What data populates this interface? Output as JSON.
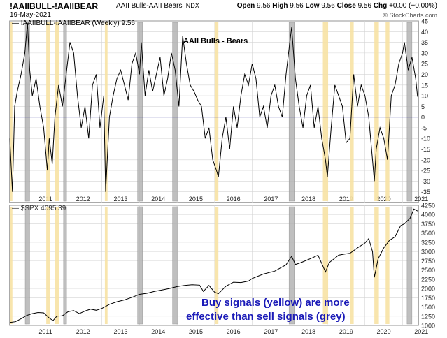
{
  "header": {
    "ticker": "!AAIIBULL-!AAIIBEAR",
    "description": "AAII Bulls-AAII Bears",
    "exchange": "INDX",
    "date": "19-May-2021",
    "open_label": "Open",
    "open": "9.56",
    "high_label": "High",
    "high": "9.56",
    "low_label": "Low",
    "low": "9.56",
    "close_label": "Close",
    "close": "9.56",
    "chg_label": "Chg",
    "chg": "+0.00 (+0.00%)",
    "watermark": "© StockCharts.com"
  },
  "top_panel": {
    "legend": "— !AAIIBULL-!AAIIBEAR (Weekly) 9.56",
    "title": "AAII Bulls - Bears"
  },
  "bottom_panel": {
    "legend": "— $SPX 4095.39"
  },
  "annotation": {
    "line1": "Buy signals (yellow) are more",
    "line2": "effective than sell signals (grey)"
  },
  "colors": {
    "line": "#000000",
    "zero_line": "#1a1a8c",
    "grid": "#d4d4d4",
    "buy_signal": "#f7e2a4",
    "sell_signal": "#b4b4b4",
    "annotation_text": "#1b1bb8"
  },
  "chart_data": [
    {
      "type": "line",
      "title": "AAII Bulls - Bears",
      "x_axis": {
        "start": 2010.55,
        "end": 2021.42,
        "tick_labels": [
          "2011",
          "2012",
          "2013",
          "2014",
          "2015",
          "2016",
          "2017",
          "2018",
          "2019",
          "2020",
          "2021"
        ]
      },
      "y_axis": {
        "range": [
          -40,
          45
        ],
        "ticks": [
          -35,
          -30,
          -25,
          -20,
          -15,
          -10,
          -5,
          0,
          5,
          10,
          15,
          20,
          25,
          30,
          35,
          40,
          45
        ],
        "position": "right"
      },
      "zero_line": true,
      "grid": true,
      "series": [
        {
          "x": [
            2010.55,
            2010.62,
            2010.68,
            2010.75,
            2010.85,
            2010.95,
            2011.02,
            2011.08,
            2011.15,
            2011.25,
            2011.35,
            2011.45,
            2011.55,
            2011.6,
            2011.68,
            2011.75,
            2011.85,
            2011.95,
            2012.05,
            2012.15,
            2012.25,
            2012.35,
            2012.45,
            2012.55,
            2012.65,
            2012.75,
            2012.85,
            2012.95,
            2013.05,
            2013.1,
            2013.2,
            2013.3,
            2013.4,
            2013.5,
            2013.6,
            2013.7,
            2013.8,
            2013.9,
            2014.0,
            2014.05,
            2014.15,
            2014.25,
            2014.35,
            2014.45,
            2014.55,
            2014.65,
            2014.75,
            2014.85,
            2014.95,
            2015.05,
            2015.15,
            2015.25,
            2015.35,
            2015.45,
            2015.55,
            2015.65,
            2015.75,
            2015.85,
            2015.95,
            2016.05,
            2016.1,
            2016.2,
            2016.3,
            2016.4,
            2016.5,
            2016.6,
            2016.7,
            2016.8,
            2016.9,
            2017.0,
            2017.1,
            2017.2,
            2017.3,
            2017.4,
            2017.5,
            2017.6,
            2017.7,
            2017.8,
            2017.9,
            2018.0,
            2018.05,
            2018.15,
            2018.25,
            2018.35,
            2018.45,
            2018.55,
            2018.65,
            2018.75,
            2018.85,
            2018.95,
            2019.0,
            2019.1,
            2019.2,
            2019.3,
            2019.4,
            2019.5,
            2019.6,
            2019.7,
            2019.8,
            2019.9,
            2020.0,
            2020.1,
            2020.2,
            2020.25,
            2020.3,
            2020.4,
            2020.5,
            2020.6,
            2020.7,
            2020.8,
            2020.9,
            2021.0,
            2021.05,
            2021.15,
            2021.25,
            2021.35,
            2021.4
          ],
          "y": [
            -10,
            -35,
            5,
            12,
            20,
            30,
            44,
            22,
            10,
            18,
            5,
            -5,
            -25,
            -10,
            -22,
            0,
            15,
            5,
            20,
            35,
            30,
            10,
            -5,
            5,
            -10,
            15,
            20,
            -5,
            10,
            -35,
            0,
            10,
            18,
            22,
            15,
            8,
            25,
            30,
            20,
            35,
            10,
            22,
            12,
            20,
            28,
            10,
            18,
            30,
            22,
            5,
            38,
            25,
            15,
            12,
            8,
            5,
            -10,
            -5,
            -20,
            -25,
            -28,
            -10,
            0,
            -15,
            5,
            -5,
            10,
            20,
            15,
            25,
            18,
            0,
            5,
            -5,
            10,
            15,
            5,
            0,
            20,
            35,
            42,
            18,
            5,
            -5,
            10,
            15,
            -5,
            5,
            -10,
            -20,
            -28,
            -5,
            15,
            10,
            5,
            -12,
            -10,
            20,
            5,
            15,
            10,
            0,
            -20,
            -30,
            -15,
            -5,
            -10,
            -20,
            10,
            15,
            25,
            30,
            35,
            22,
            28,
            18,
            9.56
          ]
        }
      ],
      "buy_signals": [
        {
          "start": 2010.55,
          "end": 2010.62
        },
        {
          "start": 2011.52,
          "end": 2011.62
        },
        {
          "start": 2011.75,
          "end": 2011.86
        },
        {
          "start": 2013.08,
          "end": 2013.15
        },
        {
          "start": 2016.0,
          "end": 2016.1
        },
        {
          "start": 2018.88,
          "end": 2019.02
        },
        {
          "start": 2019.6,
          "end": 2019.7
        },
        {
          "start": 2020.25,
          "end": 2020.37
        },
        {
          "start": 2020.55,
          "end": 2020.65
        }
      ],
      "sell_signals": [
        {
          "start": 2010.96,
          "end": 2011.08
        },
        {
          "start": 2011.98,
          "end": 2012.06
        },
        {
          "start": 2013.95,
          "end": 2014.08
        },
        {
          "start": 2014.88,
          "end": 2015.02
        },
        {
          "start": 2017.98,
          "end": 2018.12
        },
        {
          "start": 2021.12,
          "end": 2021.25
        }
      ]
    },
    {
      "type": "line",
      "title": "$SPX",
      "legend": "$SPX 4095.39",
      "x_axis": {
        "start": 2010.55,
        "end": 2021.42,
        "tick_labels": [
          "2011",
          "2012",
          "2013",
          "2014",
          "2015",
          "2016",
          "2017",
          "2018",
          "2019",
          "2020",
          "2021"
        ]
      },
      "y_axis": {
        "range": [
          1000,
          4250
        ],
        "ticks": [
          1000,
          1250,
          1500,
          1750,
          2000,
          2250,
          2500,
          2750,
          3000,
          3250,
          3500,
          3750,
          4000,
          4250
        ],
        "position": "right"
      },
      "grid": true,
      "series": [
        {
          "x": [
            2010.55,
            2010.7,
            2010.85,
            2011.0,
            2011.15,
            2011.3,
            2011.45,
            2011.6,
            2011.7,
            2011.8,
            2011.95,
            2012.1,
            2012.25,
            2012.4,
            2012.55,
            2012.7,
            2012.85,
            2013.0,
            2013.2,
            2013.4,
            2013.6,
            2013.8,
            2014.0,
            2014.2,
            2014.4,
            2014.6,
            2014.8,
            2015.0,
            2015.2,
            2015.4,
            2015.6,
            2015.7,
            2015.85,
            2016.0,
            2016.1,
            2016.3,
            2016.5,
            2016.7,
            2016.9,
            2017.0,
            2017.3,
            2017.6,
            2017.9,
            2018.05,
            2018.15,
            2018.3,
            2018.6,
            2018.75,
            2018.95,
            2019.05,
            2019.3,
            2019.45,
            2019.6,
            2019.8,
            2020.0,
            2020.1,
            2020.2,
            2020.25,
            2020.35,
            2020.5,
            2020.65,
            2020.8,
            2020.95,
            2021.05,
            2021.2,
            2021.3,
            2021.4
          ],
          "y": [
            1080,
            1100,
            1180,
            1270,
            1320,
            1350,
            1340,
            1200,
            1130,
            1250,
            1260,
            1370,
            1400,
            1320,
            1390,
            1440,
            1410,
            1460,
            1570,
            1640,
            1690,
            1760,
            1840,
            1870,
            1920,
            1960,
            2000,
            2050,
            2080,
            2100,
            2090,
            1920,
            2080,
            1900,
            1860,
            2060,
            2170,
            2160,
            2200,
            2270,
            2390,
            2470,
            2640,
            2870,
            2650,
            2700,
            2830,
            2900,
            2450,
            2700,
            2900,
            2930,
            2950,
            3100,
            3230,
            3350,
            3000,
            2300,
            2800,
            3100,
            3300,
            3400,
            3700,
            3750,
            3900,
            4150,
            4095.39
          ]
        }
      ],
      "buy_signals": [
        {
          "start": 2010.55,
          "end": 2010.62
        },
        {
          "start": 2011.52,
          "end": 2011.62
        },
        {
          "start": 2011.75,
          "end": 2011.86
        },
        {
          "start": 2013.08,
          "end": 2013.15
        },
        {
          "start": 2016.0,
          "end": 2016.1
        },
        {
          "start": 2018.88,
          "end": 2019.02
        },
        {
          "start": 2019.6,
          "end": 2019.7
        },
        {
          "start": 2020.25,
          "end": 2020.37
        },
        {
          "start": 2020.55,
          "end": 2020.65
        }
      ],
      "sell_signals": [
        {
          "start": 2010.96,
          "end": 2011.08
        },
        {
          "start": 2011.98,
          "end": 2012.06
        },
        {
          "start": 2013.95,
          "end": 2014.08
        },
        {
          "start": 2014.88,
          "end": 2015.02
        },
        {
          "start": 2017.98,
          "end": 2018.12
        },
        {
          "start": 2021.12,
          "end": 2021.25
        }
      ]
    }
  ]
}
